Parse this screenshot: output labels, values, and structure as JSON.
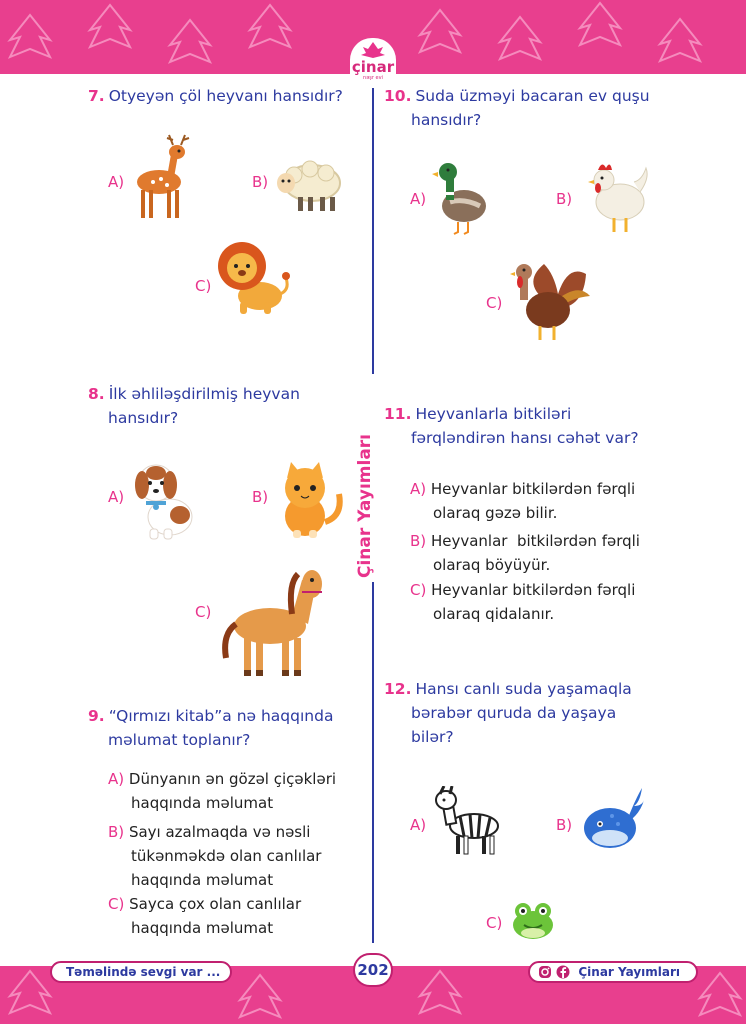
{
  "publisher": {
    "logo_text": "çinar",
    "logo_sub": "nəşr evi",
    "side_label": "Çinar Yayımları"
  },
  "footer": {
    "slogan": "Təməlində sevgi var ...",
    "page_number": "202",
    "brand": "Çinar Yayımları",
    "icons": [
      "instagram-icon",
      "facebook-icon"
    ]
  },
  "colors": {
    "pink": "#e83f8e",
    "blue": "#2d3aa0"
  },
  "questions": [
    {
      "num": "7.",
      "text": "Otyeyən çöl heyvanı hansıdır?",
      "options": [
        {
          "label": "A)",
          "image": "deer"
        },
        {
          "label": "B)",
          "image": "sheep"
        },
        {
          "label": "C)",
          "image": "lion"
        }
      ]
    },
    {
      "num": "8.",
      "text_lines": [
        "İlk əhliləşdirilmiş heyvan",
        "hansıdır?"
      ],
      "options": [
        {
          "label": "A)",
          "image": "dog"
        },
        {
          "label": "B)",
          "image": "cat"
        },
        {
          "label": "C)",
          "image": "horse"
        }
      ]
    },
    {
      "num": "9.",
      "text_lines": [
        "“Qırmızı kitab”a nə haqqında",
        "məlumat toplanır?"
      ],
      "answers": [
        {
          "label": "A)",
          "lines": [
            "Dünyanın ən gözəl çiçəkləri",
            "haqqında məlumat"
          ]
        },
        {
          "label": "B)",
          "lines": [
            "Sayı azalmaqda və nəsli",
            "tükənməkdə olan canlılar",
            "haqqında məlumat"
          ]
        },
        {
          "label": "C)",
          "lines": [
            "Sayca çox olan canlılar",
            "haqqında məlumat"
          ]
        }
      ]
    },
    {
      "num": "10.",
      "text_lines": [
        "Suda üzməyi bacaran ev quşu",
        "hansıdır?"
      ],
      "options": [
        {
          "label": "A)",
          "image": "duck"
        },
        {
          "label": "B)",
          "image": "hen"
        },
        {
          "label": "C)",
          "image": "turkey"
        }
      ]
    },
    {
      "num": "11.",
      "text_lines": [
        "Heyvanlarla bitkiləri",
        "fərqləndirən hansı cəhət var?"
      ],
      "answers": [
        {
          "label": "A)",
          "lines": [
            "Heyvanlar bitkilərdən fərqli",
            "olaraq gəzə bilir."
          ]
        },
        {
          "label": "B)",
          "lines": [
            "Heyvanlar  bitkilərdən fərqli",
            "olaraq böyüyür."
          ]
        },
        {
          "label": "C)",
          "lines": [
            "Heyvanlar bitkilərdən fərqli",
            "olaraq qidalanır."
          ]
        }
      ]
    },
    {
      "num": "12.",
      "text_lines": [
        "Hansı canlı suda yaşamaqla",
        "bərabər quruda da yaşaya",
        "bilər?"
      ],
      "options": [
        {
          "label": "A)",
          "image": "zebra"
        },
        {
          "label": "B)",
          "image": "whale"
        },
        {
          "label": "C)",
          "image": "frog"
        }
      ]
    }
  ]
}
